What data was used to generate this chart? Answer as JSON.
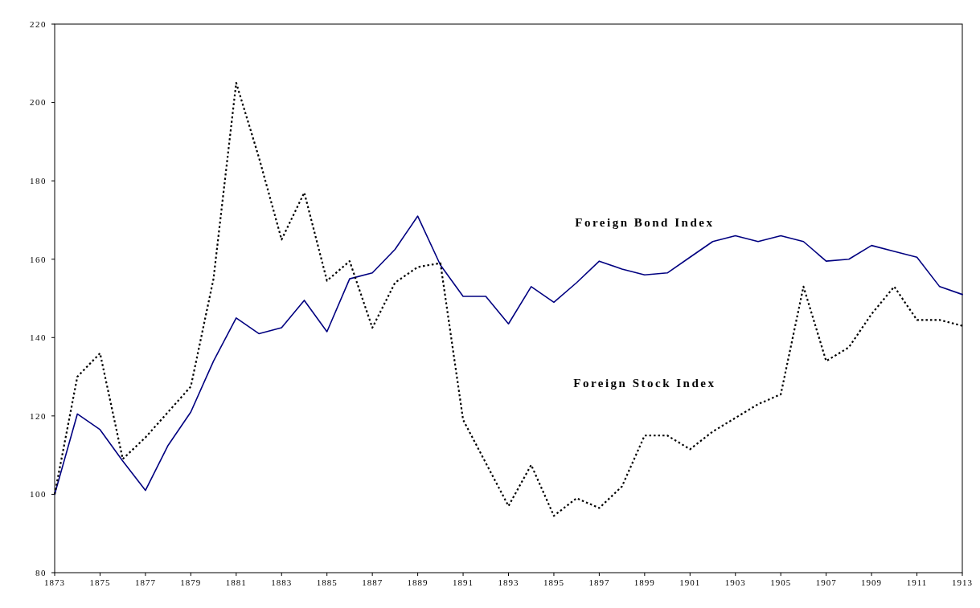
{
  "chart_data": {
    "type": "line",
    "x": [
      1873,
      1874,
      1875,
      1876,
      1877,
      1878,
      1879,
      1880,
      1881,
      1882,
      1883,
      1884,
      1885,
      1886,
      1887,
      1888,
      1889,
      1890,
      1891,
      1892,
      1893,
      1894,
      1895,
      1896,
      1897,
      1898,
      1899,
      1900,
      1901,
      1902,
      1903,
      1904,
      1905,
      1906,
      1907,
      1908,
      1909,
      1910,
      1911,
      1912,
      1913
    ],
    "series": [
      {
        "name": "Foreign Bond Index",
        "color": "#000080",
        "line_style": "solid",
        "values": [
          100,
          120.5,
          116.5,
          108.5,
          101,
          112.5,
          121,
          134,
          145,
          141,
          142.5,
          149.5,
          141.5,
          155,
          156.5,
          162.5,
          171,
          158.5,
          150.5,
          150.5,
          143.5,
          153,
          149,
          154,
          159.5,
          157.5,
          156,
          156.5,
          160.5,
          164.5,
          166,
          164.5,
          166,
          164.5,
          159.5,
          160,
          163.5,
          162,
          160.5,
          153,
          151
        ]
      },
      {
        "name": "Foreign Stock Index",
        "color": "#000000",
        "line_style": "dotted",
        "values": [
          100,
          130,
          136,
          109,
          114.5,
          121,
          127.5,
          155,
          205,
          186,
          165,
          177,
          154.5,
          159.5,
          142.5,
          154,
          158,
          159,
          119,
          108,
          97,
          107.5,
          94.5,
          99,
          96.5,
          102,
          115,
          115,
          111.5,
          116,
          119.5,
          123,
          125.5,
          153,
          134,
          137.5,
          146,
          153,
          144.5,
          144.5,
          143
        ]
      }
    ],
    "xlim": [
      1873,
      1913
    ],
    "xticks": [
      1873,
      1875,
      1877,
      1879,
      1881,
      1883,
      1885,
      1887,
      1889,
      1891,
      1893,
      1895,
      1897,
      1899,
      1901,
      1903,
      1905,
      1907,
      1909,
      1911,
      1913
    ],
    "ylim": [
      80,
      220
    ],
    "yticks": [
      80,
      100,
      120,
      140,
      160,
      180,
      200,
      220
    ],
    "grid": false,
    "marker": "none"
  }
}
